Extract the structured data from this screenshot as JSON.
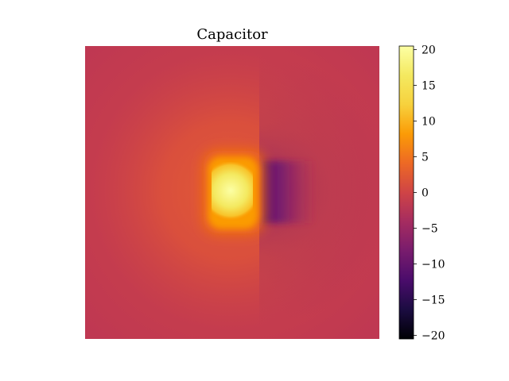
{
  "chart_data": {
    "type": "heatmap",
    "title": "Capacitor",
    "xlabel": "",
    "ylabel": "",
    "axes_visible": false,
    "colormap": "inferno",
    "background_value": 0,
    "colorbar": {
      "range": [
        -20.5,
        20.5
      ],
      "ticks": [
        20,
        15,
        10,
        5,
        0,
        -5,
        -10,
        -15,
        -20
      ],
      "tick_labels": [
        "20",
        "15",
        "10",
        "5",
        "0",
        "−5",
        "−10",
        "−15",
        "−20"
      ],
      "placement": "right"
    },
    "features": [
      {
        "name": "positive-plate",
        "peak_value": 20
      },
      {
        "name": "negative-plate",
        "peak_value": -7
      }
    ]
  }
}
